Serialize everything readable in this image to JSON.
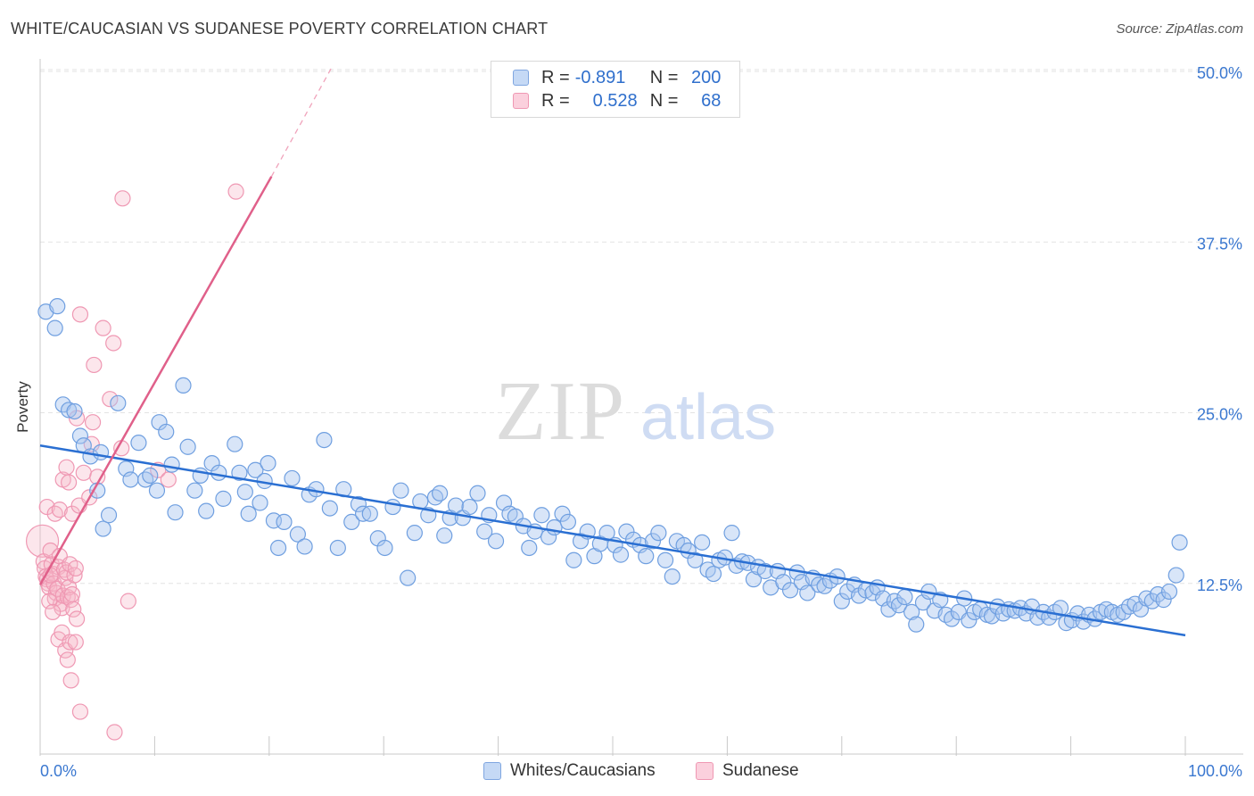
{
  "header": {
    "title": "WHITE/CAUCASIAN VS SUDANESE POVERTY CORRELATION CHART",
    "source": "Source: ZipAtlas.com"
  },
  "watermark": {
    "zip": "ZIP",
    "atlas": "atlas"
  },
  "legend": {
    "rows": [
      {
        "r_label": "R =",
        "r_value": "-0.891",
        "n_label": "N =",
        "n_value": "200",
        "color": "#a9c6f0"
      },
      {
        "r_label": "R =",
        "r_value": "0.528",
        "n_label": "N =",
        "n_value": "68",
        "color": "#f6b6c9"
      }
    ]
  },
  "bottom_legend": [
    {
      "label": "Whites/Caucasians",
      "color": "#a9c6f0"
    },
    {
      "label": "Sudanese",
      "color": "#f6b6c9"
    }
  ],
  "chart_data": {
    "type": "scatter",
    "title": "WHITE/CAUCASIAN VS SUDANESE POVERTY CORRELATION CHART",
    "ylabel": "Poverty",
    "xlabel": "",
    "xlim": [
      0,
      100
    ],
    "ylim": [
      0,
      52
    ],
    "x_tick_labels": [
      "0.0%",
      "100.0%"
    ],
    "y_ticks": [
      12.5,
      25.0,
      37.5,
      50.0
    ],
    "y_tick_labels": [
      "12.5%",
      "25.0%",
      "37.5%",
      "50.0%"
    ],
    "grid": true,
    "colors": {
      "blue": "#6f9fe0",
      "blue_line": "#2a6fd2",
      "pink": "#ef8fae",
      "pink_line": "#e0608a",
      "axis_label": "#3b78d0"
    },
    "series": [
      {
        "name": "Whites/Caucasians",
        "trend": {
          "x": [
            0,
            100
          ],
          "y": [
            22.6,
            8.7
          ]
        },
        "points": [
          [
            0.5,
            32.4
          ],
          [
            1.5,
            32.8
          ],
          [
            1.3,
            31.2
          ],
          [
            2,
            25.6
          ],
          [
            2.5,
            25.2
          ],
          [
            3,
            25.1
          ],
          [
            3.5,
            23.3
          ],
          [
            3.8,
            22.6
          ],
          [
            4.4,
            21.8
          ],
          [
            5.3,
            22.1
          ],
          [
            5,
            19.3
          ],
          [
            5.5,
            16.5
          ],
          [
            6,
            17.5
          ],
          [
            6.8,
            25.7
          ],
          [
            7.5,
            20.9
          ],
          [
            7.9,
            20.1
          ],
          [
            8.6,
            22.8
          ],
          [
            9.2,
            20.1
          ],
          [
            9.6,
            20.4
          ],
          [
            10.2,
            19.3
          ],
          [
            10.4,
            24.3
          ],
          [
            11,
            23.6
          ],
          [
            11.5,
            21.2
          ],
          [
            11.8,
            17.7
          ],
          [
            12.5,
            27
          ],
          [
            12.9,
            22.5
          ],
          [
            13.5,
            19.3
          ],
          [
            14,
            20.4
          ],
          [
            14.5,
            17.8
          ],
          [
            15,
            21.3
          ],
          [
            15.6,
            20.6
          ],
          [
            16,
            18.7
          ],
          [
            17,
            22.7
          ],
          [
            17.4,
            20.6
          ],
          [
            17.9,
            19.2
          ],
          [
            18.2,
            17.6
          ],
          [
            18.8,
            20.8
          ],
          [
            19.2,
            18.4
          ],
          [
            19.6,
            20
          ],
          [
            19.9,
            21.3
          ],
          [
            20.4,
            17.1
          ],
          [
            20.8,
            15.1
          ],
          [
            21.3,
            17
          ],
          [
            22,
            20.2
          ],
          [
            22.5,
            16.1
          ],
          [
            23.1,
            15.2
          ],
          [
            23.5,
            19
          ],
          [
            24.1,
            19.4
          ],
          [
            24.8,
            23
          ],
          [
            25.3,
            18
          ],
          [
            26,
            15.1
          ],
          [
            26.5,
            19.4
          ],
          [
            27.2,
            17
          ],
          [
            27.8,
            18.3
          ],
          [
            28.2,
            17.6
          ],
          [
            28.8,
            17.6
          ],
          [
            29.5,
            15.8
          ],
          [
            30.1,
            15.1
          ],
          [
            30.8,
            18.1
          ],
          [
            31.5,
            19.3
          ],
          [
            32.1,
            12.9
          ],
          [
            32.7,
            16.2
          ],
          [
            33.2,
            18.5
          ],
          [
            33.9,
            17.5
          ],
          [
            34.5,
            18.8
          ],
          [
            34.9,
            19.1
          ],
          [
            35.3,
            16
          ],
          [
            35.8,
            17.3
          ],
          [
            36.3,
            18.2
          ],
          [
            36.9,
            17.3
          ],
          [
            37.5,
            18.1
          ],
          [
            38.2,
            19.1
          ],
          [
            38.8,
            16.3
          ],
          [
            39.2,
            17.5
          ],
          [
            39.8,
            15.6
          ],
          [
            40.5,
            18.4
          ],
          [
            41,
            17.6
          ],
          [
            41.5,
            17.4
          ],
          [
            42.2,
            16.7
          ],
          [
            42.7,
            15.1
          ],
          [
            43.2,
            16.3
          ],
          [
            43.8,
            17.5
          ],
          [
            44.4,
            15.9
          ],
          [
            44.9,
            16.6
          ],
          [
            45.6,
            17.6
          ],
          [
            46.1,
            17
          ],
          [
            46.6,
            14.2
          ],
          [
            47.2,
            15.6
          ],
          [
            47.8,
            16.3
          ],
          [
            48.4,
            14.5
          ],
          [
            48.9,
            15.4
          ],
          [
            49.5,
            16.2
          ],
          [
            50.2,
            15.3
          ],
          [
            50.7,
            14.6
          ],
          [
            51.2,
            16.3
          ],
          [
            51.8,
            15.7
          ],
          [
            52.4,
            15.3
          ],
          [
            52.9,
            14.5
          ],
          [
            53.5,
            15.6
          ],
          [
            54,
            16.2
          ],
          [
            54.6,
            14.2
          ],
          [
            55.2,
            13
          ],
          [
            55.6,
            15.6
          ],
          [
            56.2,
            15.3
          ],
          [
            56.6,
            14.9
          ],
          [
            57.2,
            14.2
          ],
          [
            57.8,
            15.5
          ],
          [
            58.3,
            13.5
          ],
          [
            58.8,
            13.2
          ],
          [
            59.3,
            14.2
          ],
          [
            59.8,
            14.4
          ],
          [
            60.4,
            16.2
          ],
          [
            60.8,
            13.8
          ],
          [
            61.3,
            14.1
          ],
          [
            61.8,
            14
          ],
          [
            62.3,
            12.8
          ],
          [
            62.7,
            13.7
          ],
          [
            63.3,
            13.4
          ],
          [
            63.8,
            12.2
          ],
          [
            64.4,
            13.4
          ],
          [
            64.9,
            12.6
          ],
          [
            65.5,
            12
          ],
          [
            66.1,
            13.3
          ],
          [
            66.5,
            12.6
          ],
          [
            67,
            11.8
          ],
          [
            67.5,
            12.9
          ],
          [
            68,
            12.4
          ],
          [
            68.5,
            12.3
          ],
          [
            69,
            12.7
          ],
          [
            69.6,
            13
          ],
          [
            70,
            11.2
          ],
          [
            70.5,
            11.9
          ],
          [
            71.1,
            12.4
          ],
          [
            71.5,
            11.6
          ],
          [
            72.1,
            12
          ],
          [
            72.7,
            11.8
          ],
          [
            73.1,
            12.2
          ],
          [
            73.6,
            11.4
          ],
          [
            74.1,
            10.6
          ],
          [
            74.6,
            11.2
          ],
          [
            75,
            10.9
          ],
          [
            75.5,
            11.5
          ],
          [
            76.1,
            10.4
          ],
          [
            76.5,
            9.5
          ],
          [
            77.1,
            11.1
          ],
          [
            77.6,
            11.9
          ],
          [
            78.1,
            10.5
          ],
          [
            78.6,
            11.3
          ],
          [
            79.1,
            10.2
          ],
          [
            79.6,
            9.9
          ],
          [
            80.2,
            10.4
          ],
          [
            80.7,
            11.4
          ],
          [
            81.1,
            9.8
          ],
          [
            81.6,
            10.4
          ],
          [
            82.1,
            10.6
          ],
          [
            82.7,
            10.2
          ],
          [
            83.1,
            10.1
          ],
          [
            83.6,
            10.8
          ],
          [
            84.1,
            10.3
          ],
          [
            84.6,
            10.6
          ],
          [
            85.1,
            10.5
          ],
          [
            85.6,
            10.7
          ],
          [
            86.1,
            10.3
          ],
          [
            86.6,
            10.8
          ],
          [
            87.1,
            10
          ],
          [
            87.6,
            10.4
          ],
          [
            88.1,
            10
          ],
          [
            88.6,
            10.4
          ],
          [
            89.1,
            10.7
          ],
          [
            89.6,
            9.6
          ],
          [
            90.1,
            9.8
          ],
          [
            90.6,
            10.3
          ],
          [
            91.1,
            9.7
          ],
          [
            91.6,
            10.2
          ],
          [
            92.1,
            9.9
          ],
          [
            92.6,
            10.4
          ],
          [
            93.1,
            10.6
          ],
          [
            93.6,
            10.4
          ],
          [
            94.1,
            10.2
          ],
          [
            94.6,
            10.4
          ],
          [
            95.1,
            10.8
          ],
          [
            95.6,
            11
          ],
          [
            96.1,
            10.6
          ],
          [
            96.6,
            11.4
          ],
          [
            97.1,
            11.2
          ],
          [
            97.6,
            11.7
          ],
          [
            98.1,
            11.3
          ],
          [
            98.6,
            11.9
          ],
          [
            99.2,
            13.1
          ],
          [
            99.5,
            15.5
          ]
        ]
      },
      {
        "name": "Sudanese",
        "trend": {
          "x": [
            0,
            20.2
          ],
          "y": [
            12.4,
            42.3
          ],
          "dashed_to": [
            25.4,
            50.2
          ]
        },
        "points": [
          [
            0.2,
            15.6
          ],
          [
            0.3,
            14.1
          ],
          [
            0.4,
            13.6
          ],
          [
            0.5,
            13
          ],
          [
            0.6,
            12.8
          ],
          [
            0.7,
            12.5
          ],
          [
            0.8,
            12.2
          ],
          [
            0.9,
            14.9
          ],
          [
            1,
            13.9
          ],
          [
            1.1,
            13.2
          ],
          [
            1.2,
            12.5
          ],
          [
            1.3,
            11.4
          ],
          [
            1.4,
            11.8
          ],
          [
            1.5,
            12.1
          ],
          [
            1.6,
            13.7
          ],
          [
            1.7,
            14.5
          ],
          [
            1.8,
            11
          ],
          [
            1.9,
            10.7
          ],
          [
            2,
            11.6
          ],
          [
            2.1,
            13.5
          ],
          [
            2.2,
            12.9
          ],
          [
            2.3,
            13.3
          ],
          [
            2.4,
            11.5
          ],
          [
            2.5,
            12.2
          ],
          [
            2.6,
            13.9
          ],
          [
            2.7,
            11.3
          ],
          [
            2.8,
            11.7
          ],
          [
            2.9,
            10.6
          ],
          [
            3,
            13.1
          ],
          [
            3.1,
            13.6
          ],
          [
            0.6,
            18.1
          ],
          [
            0.8,
            11.2
          ],
          [
            1.1,
            10.4
          ],
          [
            1.3,
            17.6
          ],
          [
            1.6,
            8.4
          ],
          [
            1.9,
            8.9
          ],
          [
            2.2,
            7.6
          ],
          [
            2.4,
            6.9
          ],
          [
            2.7,
            5.4
          ],
          [
            3.2,
            9.9
          ],
          [
            1.7,
            17.9
          ],
          [
            2,
            20.1
          ],
          [
            2.3,
            21
          ],
          [
            2.5,
            19.9
          ],
          [
            2.8,
            17.6
          ],
          [
            3.4,
            18.2
          ],
          [
            3.8,
            20.6
          ],
          [
            4.3,
            18.8
          ],
          [
            4.5,
            22.7
          ],
          [
            5,
            20.3
          ],
          [
            3.5,
            32.2
          ],
          [
            4.7,
            28.5
          ],
          [
            5.5,
            31.2
          ],
          [
            6.4,
            30.1
          ],
          [
            3.2,
            24.6
          ],
          [
            4.6,
            24.3
          ],
          [
            6.1,
            26
          ],
          [
            7.1,
            22.4
          ],
          [
            10.3,
            20.8
          ],
          [
            11.2,
            20.1
          ],
          [
            7.2,
            40.7
          ],
          [
            17.1,
            41.2
          ],
          [
            3.5,
            3.1
          ],
          [
            6.5,
            1.6
          ],
          [
            7.7,
            11.2
          ],
          [
            2.6,
            8.2
          ],
          [
            3.1,
            8.2
          ],
          [
            0.9,
            13.1
          ]
        ]
      }
    ]
  }
}
